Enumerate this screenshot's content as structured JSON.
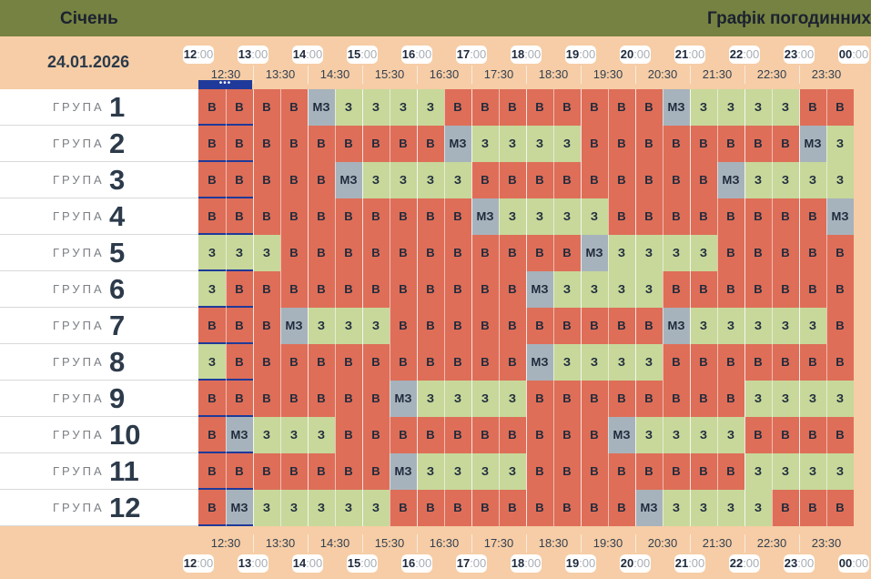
{
  "header": {
    "month": "Січень",
    "title": "Графік погодинних"
  },
  "date": "24.01.2026",
  "hours": [
    {
      "h": "12",
      "m": ":00"
    },
    {
      "h": "13",
      "m": ":00"
    },
    {
      "h": "14",
      "m": ":00"
    },
    {
      "h": "15",
      "m": ":00"
    },
    {
      "h": "16",
      "m": ":00"
    },
    {
      "h": "17",
      "m": ":00"
    },
    {
      "h": "18",
      "m": ":00"
    },
    {
      "h": "19",
      "m": ":00"
    },
    {
      "h": "20",
      "m": ":00"
    },
    {
      "h": "21",
      "m": ":00"
    },
    {
      "h": "22",
      "m": ":00"
    },
    {
      "h": "23",
      "m": ":00"
    },
    {
      "h": "00",
      "m": ":00"
    }
  ],
  "half_hours": [
    "12:30",
    "13:30",
    "14:30",
    "15:30",
    "16:30",
    "17:30",
    "18:30",
    "19:30",
    "20:30",
    "21:30",
    "22:30",
    "23:30"
  ],
  "current_marker": "•••",
  "group_label": "ГРУПА",
  "codes": {
    "v": "В",
    "z": "З",
    "mz": "МЗ"
  },
  "colors": {
    "v": "#de6e58",
    "z": "#c7d89a",
    "mz": "#a7b3bc",
    "header": "#758241",
    "background": "#f6cda6",
    "current": "#1f3a9a"
  },
  "groups": [
    {
      "num": "1",
      "cells": [
        "v",
        "v",
        "v",
        "v",
        "mz",
        "z",
        "z",
        "z",
        "z",
        "v",
        "v",
        "v",
        "v",
        "v",
        "v",
        "v",
        "v",
        "mz",
        "z",
        "z",
        "z",
        "z",
        "v",
        "v"
      ]
    },
    {
      "num": "2",
      "cells": [
        "v",
        "v",
        "v",
        "v",
        "v",
        "v",
        "v",
        "v",
        "v",
        "mz",
        "z",
        "z",
        "z",
        "z",
        "v",
        "v",
        "v",
        "v",
        "v",
        "v",
        "v",
        "v",
        "mz",
        "z"
      ]
    },
    {
      "num": "3",
      "cells": [
        "v",
        "v",
        "v",
        "v",
        "v",
        "mz",
        "z",
        "z",
        "z",
        "z",
        "v",
        "v",
        "v",
        "v",
        "v",
        "v",
        "v",
        "v",
        "v",
        "mz",
        "z",
        "z",
        "z",
        "z"
      ]
    },
    {
      "num": "4",
      "cells": [
        "v",
        "v",
        "v",
        "v",
        "v",
        "v",
        "v",
        "v",
        "v",
        "v",
        "mz",
        "z",
        "z",
        "z",
        "z",
        "v",
        "v",
        "v",
        "v",
        "v",
        "v",
        "v",
        "v",
        "mz"
      ]
    },
    {
      "num": "5",
      "cells": [
        "z",
        "z",
        "z",
        "v",
        "v",
        "v",
        "v",
        "v",
        "v",
        "v",
        "v",
        "v",
        "v",
        "v",
        "mz",
        "z",
        "z",
        "z",
        "z",
        "v",
        "v",
        "v",
        "v",
        "v"
      ]
    },
    {
      "num": "6",
      "cells": [
        "z",
        "v",
        "v",
        "v",
        "v",
        "v",
        "v",
        "v",
        "v",
        "v",
        "v",
        "v",
        "mz",
        "z",
        "z",
        "z",
        "z",
        "v",
        "v",
        "v",
        "v",
        "v",
        "v",
        "v"
      ]
    },
    {
      "num": "7",
      "cells": [
        "v",
        "v",
        "v",
        "mz",
        "z",
        "z",
        "z",
        "v",
        "v",
        "v",
        "v",
        "v",
        "v",
        "v",
        "v",
        "v",
        "v",
        "mz",
        "z",
        "z",
        "z",
        "z",
        "z",
        "v"
      ]
    },
    {
      "num": "8",
      "cells": [
        "z",
        "v",
        "v",
        "v",
        "v",
        "v",
        "v",
        "v",
        "v",
        "v",
        "v",
        "v",
        "mz",
        "z",
        "z",
        "z",
        "z",
        "v",
        "v",
        "v",
        "v",
        "v",
        "v",
        "v"
      ]
    },
    {
      "num": "9",
      "cells": [
        "v",
        "v",
        "v",
        "v",
        "v",
        "v",
        "v",
        "mz",
        "z",
        "z",
        "z",
        "z",
        "v",
        "v",
        "v",
        "v",
        "v",
        "v",
        "v",
        "v",
        "z",
        "z",
        "z",
        "z"
      ]
    },
    {
      "num": "10",
      "cells": [
        "v",
        "mz",
        "z",
        "z",
        "z",
        "v",
        "v",
        "v",
        "v",
        "v",
        "v",
        "v",
        "v",
        "v",
        "v",
        "mz",
        "z",
        "z",
        "z",
        "z",
        "v",
        "v",
        "v",
        "v"
      ]
    },
    {
      "num": "11",
      "cells": [
        "v",
        "v",
        "v",
        "v",
        "v",
        "v",
        "v",
        "mz",
        "z",
        "z",
        "z",
        "z",
        "v",
        "v",
        "v",
        "v",
        "v",
        "v",
        "v",
        "v",
        "z",
        "z",
        "z",
        "z"
      ]
    },
    {
      "num": "12",
      "cells": [
        "v",
        "mz",
        "z",
        "z",
        "z",
        "z",
        "z",
        "v",
        "v",
        "v",
        "v",
        "v",
        "v",
        "v",
        "v",
        "v",
        "mz",
        "z",
        "z",
        "z",
        "z",
        "v",
        "v",
        "v"
      ]
    }
  ]
}
